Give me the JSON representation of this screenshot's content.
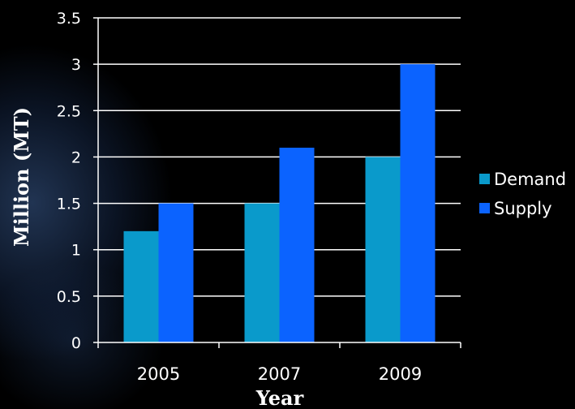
{
  "chart_data": {
    "type": "bar",
    "categories": [
      "2005",
      "2007",
      "2009"
    ],
    "series": [
      {
        "name": "Demand",
        "values": [
          1.2,
          1.5,
          2.0
        ],
        "color": "#0a9acb"
      },
      {
        "name": "Supply",
        "values": [
          1.5,
          2.1,
          3.0
        ],
        "color": "#0b63ff"
      }
    ],
    "xlabel": "Year",
    "ylabel": "Million (MT)",
    "ylim": [
      0,
      3.5
    ],
    "yticks": [
      "0",
      "0.5",
      "1",
      "1.5",
      "2",
      "2.5",
      "3",
      "3.5"
    ],
    "grid": true,
    "legend_position": "right",
    "gridline_color": "#ffffff",
    "background_color": "#000000"
  }
}
